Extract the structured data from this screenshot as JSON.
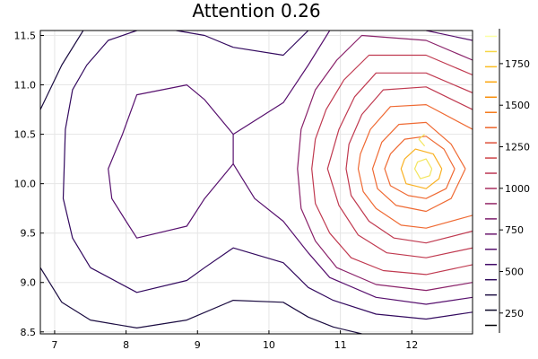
{
  "chart_data": {
    "type": "contour",
    "title": "Attention 0.26",
    "xlabel": "",
    "ylabel": "",
    "xlim": [
      6.8,
      12.85
    ],
    "ylim": [
      8.48,
      11.55
    ],
    "xticks": [
      7,
      8,
      9,
      10,
      11,
      12
    ],
    "xtick_labels": [
      "7",
      "8",
      "9",
      "10",
      "11",
      "12"
    ],
    "yticks": [
      8.5,
      9.0,
      9.5,
      10.0,
      10.5,
      11.0,
      11.5
    ],
    "ytick_labels": [
      "8.5",
      "9.0",
      "9.5",
      "10.0",
      "10.5",
      "11.0",
      "11.5"
    ],
    "grid": true,
    "colorbar": {
      "range": [
        130,
        1960
      ],
      "ticks": [
        250,
        500,
        750,
        1000,
        1250,
        1500,
        1750
      ],
      "tick_labels": [
        "250",
        "500",
        "750",
        "1000",
        "1250",
        "1500",
        "1750"
      ],
      "colormap": "inferno"
    },
    "levels": [
      {
        "value": 250,
        "color": "#1b0c41",
        "paths": [
          [
            [
              6.8,
              9.15
            ],
            [
              7.1,
              8.8
            ],
            [
              7.5,
              8.62
            ],
            [
              8.15,
              8.54
            ],
            [
              8.85,
              8.62
            ],
            [
              9.5,
              8.82
            ],
            [
              10.2,
              8.8
            ],
            [
              10.55,
              8.65
            ],
            [
              10.9,
              8.55
            ],
            [
              11.3,
              8.48
            ]
          ],
          [
            [
              6.8,
              10.75
            ],
            [
              7.1,
              11.2
            ],
            [
              7.4,
              11.55
            ]
          ]
        ]
      },
      {
        "value": 500,
        "color": "#330a5f",
        "paths": [
          [
            [
              7.5,
              9.15
            ],
            [
              8.15,
              8.9
            ],
            [
              8.85,
              9.02
            ],
            [
              9.1,
              9.15
            ],
            [
              9.5,
              9.35
            ],
            [
              10.2,
              9.2
            ],
            [
              10.55,
              8.95
            ],
            [
              10.9,
              8.82
            ],
            [
              11.5,
              8.68
            ],
            [
              12.2,
              8.63
            ],
            [
              12.85,
              8.7
            ]
          ],
          [
            [
              7.5,
              9.15
            ],
            [
              7.25,
              9.45
            ],
            [
              7.12,
              9.85
            ],
            [
              7.15,
              10.55
            ],
            [
              7.25,
              10.95
            ],
            [
              7.45,
              11.2
            ],
            [
              7.75,
              11.45
            ],
            [
              8.15,
              11.55
            ]
          ],
          [
            [
              9.5,
              11.38
            ],
            [
              10.2,
              11.3
            ],
            [
              10.55,
              11.55
            ]
          ],
          [
            [
              8.7,
              11.55
            ],
            [
              9.1,
              11.5
            ],
            [
              9.5,
              11.38
            ]
          ]
        ]
      },
      {
        "value": 750,
        "color": "#57106e",
        "paths": [
          [
            [
              8.0,
              9.62
            ],
            [
              8.15,
              9.45
            ],
            [
              8.85,
              9.57
            ],
            [
              9.1,
              9.85
            ],
            [
              9.5,
              10.2
            ],
            [
              9.5,
              10.5
            ],
            [
              9.1,
              10.85
            ],
            [
              8.85,
              11.0
            ],
            [
              8.15,
              10.9
            ],
            [
              7.95,
              10.5
            ],
            [
              7.75,
              10.15
            ],
            [
              7.8,
              9.85
            ],
            [
              8.0,
              9.62
            ]
          ],
          [
            [
              9.5,
              10.2
            ],
            [
              9.8,
              9.85
            ],
            [
              10.2,
              9.62
            ],
            [
              10.55,
              9.3
            ],
            [
              10.85,
              9.05
            ],
            [
              11.5,
              8.85
            ],
            [
              12.2,
              8.78
            ],
            [
              12.85,
              8.85
            ]
          ],
          [
            [
              9.5,
              10.5
            ],
            [
              10.2,
              10.82
            ],
            [
              10.55,
              11.2
            ],
            [
              10.85,
              11.55
            ]
          ],
          [
            [
              12.2,
              11.55
            ],
            [
              12.85,
              11.45
            ]
          ]
        ]
      },
      {
        "value": 1000,
        "color": "#8a226a",
        "paths": [
          [
            [
              12.85,
              11.25
            ],
            [
              12.2,
              11.45
            ],
            [
              11.3,
              11.5
            ],
            [
              10.95,
              11.25
            ],
            [
              10.65,
              10.95
            ],
            [
              10.45,
              10.55
            ],
            [
              10.4,
              10.15
            ],
            [
              10.45,
              9.75
            ],
            [
              10.65,
              9.42
            ],
            [
              10.95,
              9.15
            ],
            [
              11.5,
              8.98
            ],
            [
              12.2,
              8.92
            ],
            [
              12.85,
              9.0
            ]
          ]
        ]
      },
      {
        "value": 1250,
        "color": "#c03a50",
        "paths": [
          [
            [
              12.85,
              11.1
            ],
            [
              12.2,
              11.3
            ],
            [
              11.4,
              11.3
            ],
            [
              11.05,
              11.05
            ],
            [
              10.8,
              10.75
            ],
            [
              10.65,
              10.45
            ],
            [
              10.6,
              10.15
            ],
            [
              10.65,
              9.8
            ],
            [
              10.85,
              9.5
            ],
            [
              11.15,
              9.25
            ],
            [
              11.6,
              9.12
            ],
            [
              12.2,
              9.08
            ],
            [
              12.85,
              9.18
            ]
          ],
          [
            [
              12.85,
              10.92
            ],
            [
              12.2,
              11.12
            ],
            [
              11.5,
              11.12
            ],
            [
              11.2,
              10.88
            ],
            [
              10.98,
              10.55
            ],
            [
              10.82,
              10.15
            ],
            [
              10.98,
              9.78
            ],
            [
              11.25,
              9.48
            ],
            [
              11.65,
              9.3
            ],
            [
              12.2,
              9.25
            ],
            [
              12.85,
              9.35
            ]
          ],
          [
            [
              12.85,
              10.75
            ],
            [
              12.2,
              10.98
            ],
            [
              11.6,
              10.95
            ],
            [
              11.3,
              10.7
            ],
            [
              11.12,
              10.4
            ],
            [
              11.08,
              10.15
            ],
            [
              11.15,
              9.88
            ],
            [
              11.4,
              9.62
            ],
            [
              11.75,
              9.45
            ],
            [
              12.2,
              9.4
            ],
            [
              12.85,
              9.52
            ]
          ]
        ]
      },
      {
        "value": 1500,
        "color": "#ef6a33",
        "paths": [
          [
            [
              12.85,
              10.55
            ],
            [
              12.2,
              10.8
            ],
            [
              11.7,
              10.78
            ],
            [
              11.42,
              10.55
            ],
            [
              11.28,
              10.3
            ],
            [
              11.25,
              10.15
            ],
            [
              11.32,
              9.92
            ],
            [
              11.5,
              9.75
            ],
            [
              11.85,
              9.58
            ],
            [
              12.2,
              9.55
            ],
            [
              12.85,
              9.68
            ]
          ],
          [
            [
              12.75,
              10.15
            ],
            [
              12.55,
              10.4
            ],
            [
              12.2,
              10.62
            ],
            [
              11.82,
              10.6
            ],
            [
              11.58,
              10.42
            ],
            [
              11.45,
              10.15
            ],
            [
              11.52,
              9.95
            ],
            [
              11.78,
              9.78
            ],
            [
              12.2,
              9.72
            ],
            [
              12.55,
              9.85
            ],
            [
              12.75,
              10.15
            ]
          ],
          [
            [
              12.6,
              10.15
            ],
            [
              12.45,
              10.35
            ],
            [
              12.2,
              10.48
            ],
            [
              11.9,
              10.45
            ],
            [
              11.7,
              10.3
            ],
            [
              11.62,
              10.15
            ],
            [
              11.7,
              9.98
            ],
            [
              11.95,
              9.88
            ],
            [
              12.2,
              9.85
            ],
            [
              12.48,
              9.95
            ],
            [
              12.6,
              10.15
            ]
          ]
        ]
      },
      {
        "value": 1750,
        "color": "#f9b122",
        "paths": [
          [
            [
              12.42,
              10.15
            ],
            [
              12.3,
              10.3
            ],
            [
              12.05,
              10.35
            ],
            [
              11.9,
              10.25
            ],
            [
              11.85,
              10.15
            ],
            [
              11.92,
              10.0
            ],
            [
              12.2,
              9.95
            ],
            [
              12.38,
              10.05
            ],
            [
              12.42,
              10.15
            ]
          ]
        ]
      },
      {
        "value": 1900,
        "color": "#f3e55d",
        "paths": [
          [
            [
              12.18,
              10.38
            ],
            [
              12.1,
              10.45
            ],
            [
              12.18,
              10.5
            ]
          ],
          [
            [
              12.28,
              10.15
            ],
            [
              12.2,
              10.25
            ],
            [
              12.08,
              10.22
            ],
            [
              12.04,
              10.15
            ],
            [
              12.12,
              10.05
            ],
            [
              12.25,
              10.08
            ],
            [
              12.28,
              10.15
            ]
          ]
        ]
      }
    ]
  }
}
